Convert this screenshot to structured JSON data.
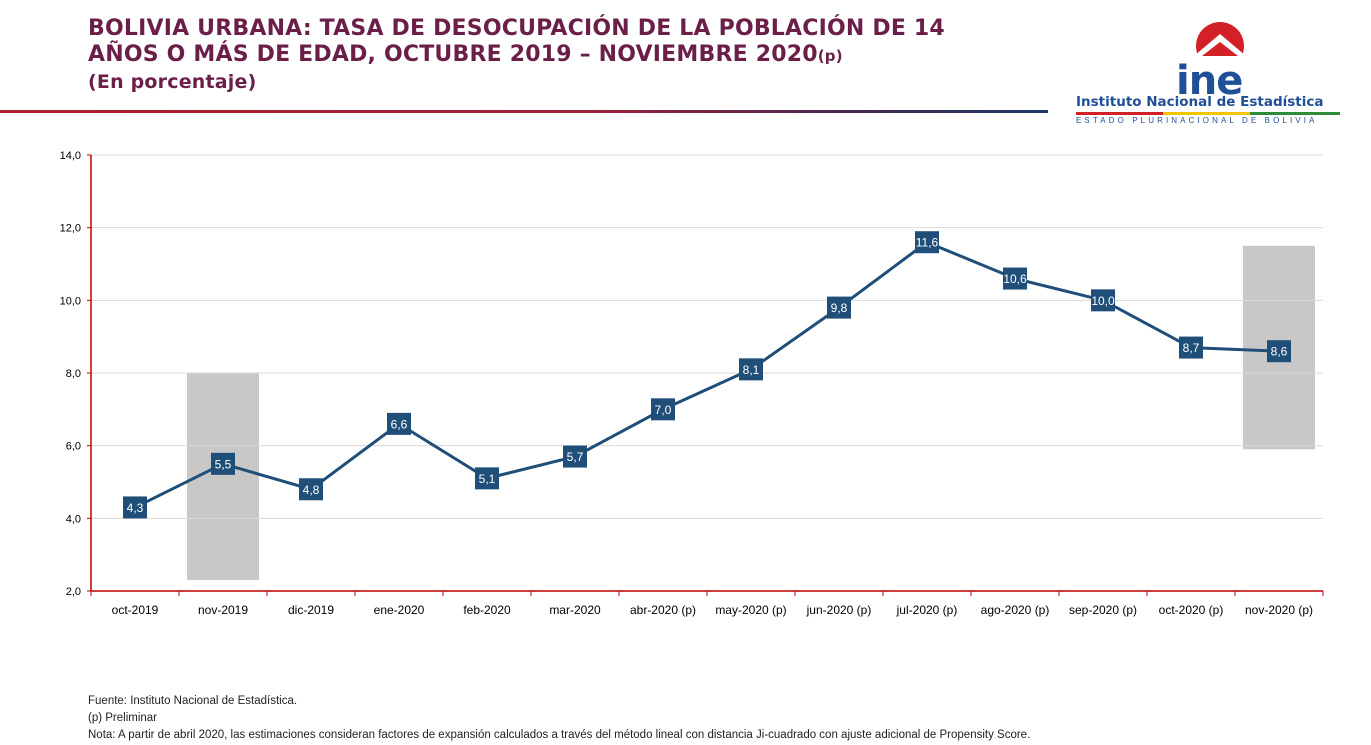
{
  "header": {
    "title_line1": "BOLIVIA URBANA: TASA DE DESOCUPACIÓN DE LA POBLACIÓN DE 14",
    "title_line2": "AÑOS O MÁS DE EDAD, OCTUBRE 2019 – NOVIEMBRE 2020",
    "title_suffix": "(p)",
    "units": "(En porcentaje)"
  },
  "logo": {
    "brand": "ine",
    "institution": "Instituto Nacional de Estadística",
    "state": "ESTADO PLURINACIONAL DE BOLIVIA"
  },
  "colors": {
    "series": "#1f4e79",
    "axis": "#c00000",
    "highlight": "#c8c8c8",
    "title": "#6b1f48"
  },
  "chart_data": {
    "type": "line",
    "title": "",
    "xlabel": "",
    "ylabel": "",
    "ylim": [
      2,
      14
    ],
    "yticks": [
      "2,0",
      "4,0",
      "6,0",
      "8,0",
      "10,0",
      "12,0",
      "14,0"
    ],
    "grid": true,
    "categories": [
      "oct-2019",
      "nov-2019",
      "dic-2019",
      "ene-2020",
      "feb-2020",
      "mar-2020",
      "abr-2020 (p)",
      "may-2020 (p)",
      "jun-2020 (p)",
      "jul-2020 (p)",
      "ago-2020 (p)",
      "sep-2020 (p)",
      "oct-2020 (p)",
      "nov-2020 (p)"
    ],
    "values": [
      4.3,
      5.5,
      4.8,
      6.6,
      5.1,
      5.7,
      7.0,
      8.1,
      9.8,
      11.6,
      10.6,
      10.0,
      8.7,
      8.6
    ],
    "data_labels": [
      "4,3",
      "5,5",
      "4,8",
      "6,6",
      "5,1",
      "5,7",
      "7,0",
      "8,1",
      "9,8",
      "11,6",
      "10,6",
      "10,0",
      "8,7",
      "8,6"
    ],
    "highlight_bands": [
      {
        "category": "nov-2019",
        "from": 2.3,
        "to": 8.0
      },
      {
        "category": "nov-2020 (p)",
        "from": 5.9,
        "to": 11.5
      }
    ]
  },
  "notes": {
    "source": "Fuente: Instituto Nacional de Estadística.",
    "preliminary": "(p) Preliminar",
    "note": "Nota: A partir de abril 2020, las estimaciones consideran factores de expansión calculados a través del método lineal con distancia Ji-cuadrado con ajuste adicional de Propensity Score."
  }
}
